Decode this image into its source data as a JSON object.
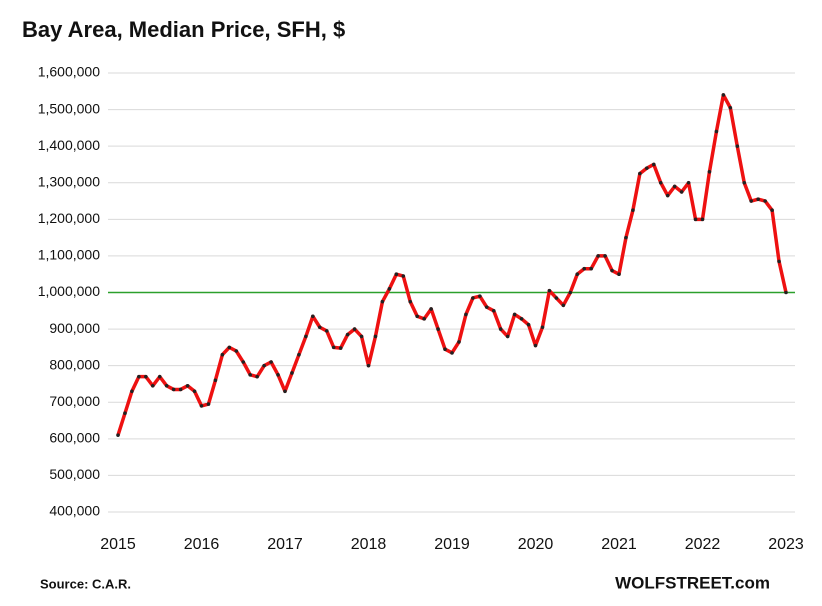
{
  "chart_data": {
    "type": "line",
    "title": "Bay Area, Median Price, SFH, $",
    "source": "Source: C.A.R.",
    "watermark": "WOLFSTREET.com",
    "categories": [
      "2015",
      null,
      null,
      null,
      null,
      null,
      null,
      null,
      null,
      null,
      null,
      null,
      "2016",
      null,
      null,
      null,
      null,
      null,
      null,
      null,
      null,
      null,
      null,
      null,
      "2017",
      null,
      null,
      null,
      null,
      null,
      null,
      null,
      null,
      null,
      null,
      null,
      "2018",
      null,
      null,
      null,
      null,
      null,
      null,
      null,
      null,
      null,
      null,
      null,
      "2019",
      null,
      null,
      null,
      null,
      null,
      null,
      null,
      null,
      null,
      null,
      null,
      "2020",
      null,
      null,
      null,
      null,
      null,
      null,
      null,
      null,
      null,
      null,
      null,
      "2021",
      null,
      null,
      null,
      null,
      null,
      null,
      null,
      null,
      null,
      null,
      null,
      "2022",
      null,
      null,
      null,
      null,
      null,
      null,
      null,
      null,
      null,
      null,
      null,
      "2023"
    ],
    "series": [
      {
        "name": "Median Price",
        "color": "#ee1111",
        "marker_color": "#222222",
        "values": [
          610000,
          670000,
          730000,
          770000,
          770000,
          745000,
          770000,
          745000,
          735000,
          735000,
          745000,
          730000,
          690000,
          695000,
          760000,
          830000,
          850000,
          840000,
          810000,
          775000,
          770000,
          800000,
          810000,
          775000,
          730000,
          780000,
          830000,
          880000,
          935000,
          905000,
          895000,
          850000,
          848000,
          885000,
          900000,
          880000,
          800000,
          880000,
          975000,
          1010000,
          1050000,
          1045000,
          975000,
          935000,
          928000,
          955000,
          900000,
          845000,
          835000,
          865000,
          940000,
          985000,
          990000,
          960000,
          950000,
          900000,
          880000,
          940000,
          928000,
          912000,
          855000,
          905000,
          1005000,
          985000,
          965000,
          1000000,
          1050000,
          1065000,
          1065000,
          1100000,
          1100000,
          1060000,
          1050000,
          1150000,
          1225000,
          1325000,
          1340000,
          1350000,
          1300000,
          1265000,
          1290000,
          1275000,
          1300000,
          1200000,
          1200000,
          1330000,
          1440000,
          1540000,
          1505000,
          1400000,
          1300000,
          1250000,
          1255000,
          1250000,
          1225000,
          1085000,
          1000000
        ]
      }
    ],
    "reference_line": {
      "value": 1000000,
      "color": "#2ca02c"
    },
    "ylim": [
      400000,
      1600000
    ],
    "yticks": [
      {
        "value": 400000,
        "label": "400,000"
      },
      {
        "value": 500000,
        "label": "500,000"
      },
      {
        "value": 600000,
        "label": "600,000"
      },
      {
        "value": 700000,
        "label": "700,000"
      },
      {
        "value": 800000,
        "label": "800,000"
      },
      {
        "value": 900000,
        "label": "900,000"
      },
      {
        "value": 1000000,
        "label": "1,000,000"
      },
      {
        "value": 1100000,
        "label": "1,100,000"
      },
      {
        "value": 1200000,
        "label": "1,200,000"
      },
      {
        "value": 1300000,
        "label": "1,300,000"
      },
      {
        "value": 1400000,
        "label": "1,400,000"
      },
      {
        "value": 1500000,
        "label": "1,500,000"
      },
      {
        "value": 1600000,
        "label": "1,600,000"
      }
    ],
    "grid": true
  }
}
